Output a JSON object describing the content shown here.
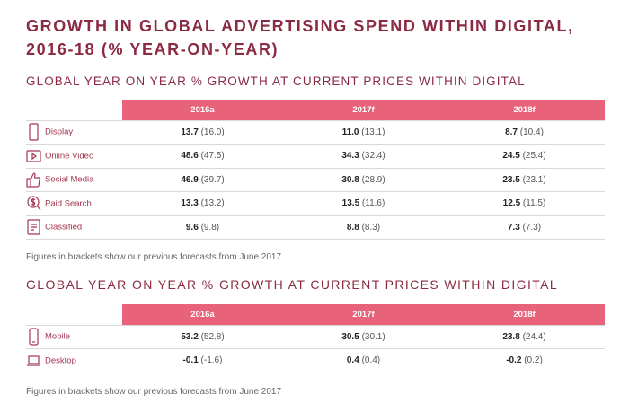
{
  "title": "GROWTH IN GLOBAL ADVERTISING SPEND WITHIN DIGITAL, 2016-18 (% YEAR-ON-YEAR)",
  "table1": {
    "section_title": "GLOBAL YEAR ON YEAR % GROWTH AT CURRENT PRICES WITHIN DIGITAL",
    "columns": [
      "2016a",
      "2017f",
      "2018f"
    ],
    "rows": [
      {
        "label": "Display",
        "icon": "display-icon",
        "cells": [
          {
            "value": "13.7",
            "prev": "(16.0)"
          },
          {
            "value": "11.0",
            "prev": "(13.1)"
          },
          {
            "value": "8.7",
            "prev": "(10.4)"
          }
        ]
      },
      {
        "label": "Online Video",
        "icon": "play-icon",
        "cells": [
          {
            "value": "48.6",
            "prev": "(47.5)"
          },
          {
            "value": "34.3",
            "prev": "(32.4)"
          },
          {
            "value": "24.5",
            "prev": "(25.4)"
          }
        ]
      },
      {
        "label": "Social Media",
        "icon": "thumbs-up-icon",
        "cells": [
          {
            "value": "46.9",
            "prev": "(39.7)"
          },
          {
            "value": "30.8",
            "prev": "(28.9)"
          },
          {
            "value": "23.5",
            "prev": "(23.1)"
          }
        ]
      },
      {
        "label": "Paid Search",
        "icon": "search-dollar-icon",
        "cells": [
          {
            "value": "13.3",
            "prev": "(13.2)"
          },
          {
            "value": "13.5",
            "prev": "(11.6)"
          },
          {
            "value": "12.5",
            "prev": "(11.5)"
          }
        ]
      },
      {
        "label": "Classified",
        "icon": "document-icon",
        "cells": [
          {
            "value": "9.6",
            "prev": "(9.8)"
          },
          {
            "value": "8.8",
            "prev": "(8.3)"
          },
          {
            "value": "7.3",
            "prev": "(7.3)"
          }
        ]
      }
    ],
    "note": "Figures in brackets show our previous forecasts from June 2017"
  },
  "table2": {
    "section_title": "GLOBAL YEAR ON YEAR % GROWTH AT CURRENT PRICES WITHIN DIGITAL",
    "columns": [
      "2016a",
      "2017f",
      "2018f"
    ],
    "rows": [
      {
        "label": "Mobile",
        "icon": "mobile-icon",
        "cells": [
          {
            "value": "53.2",
            "prev": "(52.8)"
          },
          {
            "value": "30.5",
            "prev": "(30.1)"
          },
          {
            "value": "23.8",
            "prev": "(24.4)"
          }
        ]
      },
      {
        "label": "Desktop",
        "icon": "laptop-icon",
        "cells": [
          {
            "value": "-0.1",
            "prev": "(-1.6)"
          },
          {
            "value": "0.4",
            "prev": "(0.4)"
          },
          {
            "value": "-0.2",
            "prev": "(0.2)"
          }
        ]
      }
    ],
    "note": "Figures in brackets show our previous forecasts from June 2017"
  },
  "colors": {
    "accent": "#e8637a",
    "title": "#8b2a43"
  }
}
